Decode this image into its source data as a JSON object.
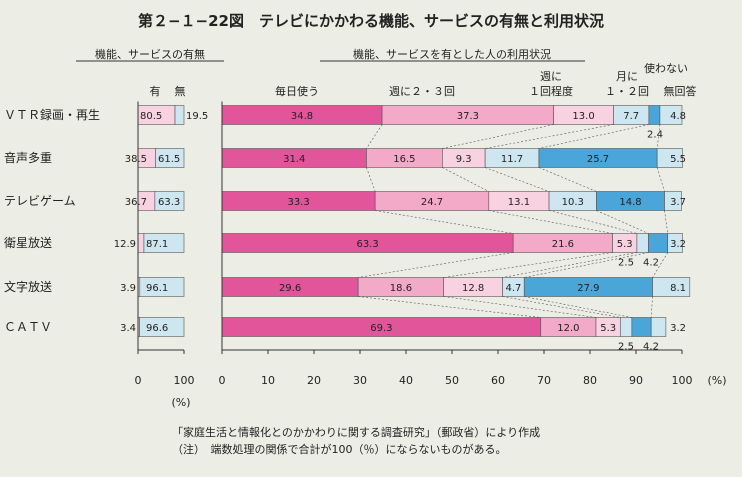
{
  "title": "第２−１−22図　テレビにかかわる機能、サービスの有無と利用状況",
  "left_header": "機能、サービスの有無",
  "right_header": "機能、サービスを有とした人の利用状況",
  "yes_label": "有",
  "no_label": "無",
  "legend_daily": "毎日使う",
  "legend_weekly": "週に２・３回",
  "legend_weekly1_a": "週に",
  "legend_weekly1_b": "１回程度",
  "legend_monthly_a": "月に",
  "legend_monthly_b": "１・２回",
  "legend_unused": "使わない",
  "legend_noanswer": "無回答",
  "left_axis_ticks": [
    "0",
    "100"
  ],
  "left_axis_unit": "(%)",
  "right_axis_ticks": [
    "0",
    "10",
    "20",
    "30",
    "40",
    "50",
    "60",
    "70",
    "80",
    "90",
    "100"
  ],
  "right_axis_unit": "(%)",
  "source": "「家庭生活と情報化とのかかわりに関する調査研究」（郵政省）により作成",
  "note": "（注）　端数処理の関係で合計が100（％）にならないものがある。",
  "colors": {
    "daily": "#e2559a",
    "weekly": "#f2aac8",
    "weekly1": "#f9d2e2",
    "monthly": "#cde6f0",
    "unused": "#4aa6d8",
    "noanswer": "#cde6f0",
    "yes": "#f9d2e2",
    "no": "#cde6f0"
  },
  "chart_data": [
    {
      "type": "bar",
      "title": "機能、サービスの有無",
      "categories": [
        "ＶＴＲ録画・再生",
        "音声多重",
        "テレビゲーム",
        "衛星放送",
        "文字放送",
        "ＣＡＴＶ"
      ],
      "series": [
        {
          "name": "有",
          "values": [
            80.5,
            38.5,
            36.7,
            12.9,
            3.9,
            3.4
          ]
        },
        {
          "name": "無",
          "values": [
            19.5,
            61.5,
            63.3,
            87.1,
            96.1,
            96.6
          ]
        }
      ],
      "stacked": true,
      "xlim": [
        0,
        100
      ]
    },
    {
      "type": "bar",
      "title": "機能、サービスを有とした人の利用状況",
      "categories": [
        "ＶＴＲ録画・再生",
        "音声多重",
        "テレビゲーム",
        "衛星放送",
        "文字放送",
        "ＣＡＴＶ"
      ],
      "series": [
        {
          "name": "毎日使う",
          "values": [
            34.8,
            31.4,
            33.3,
            63.3,
            29.6,
            69.3
          ]
        },
        {
          "name": "週に２・３回",
          "values": [
            37.3,
            16.5,
            24.7,
            21.6,
            18.6,
            12.0
          ]
        },
        {
          "name": "週に１回程度",
          "values": [
            13.0,
            9.3,
            13.1,
            5.3,
            12.8,
            5.3
          ]
        },
        {
          "name": "月に１・２回",
          "values": [
            7.7,
            11.7,
            10.3,
            2.5,
            4.7,
            2.5
          ]
        },
        {
          "name": "使わない",
          "values": [
            2.4,
            25.7,
            14.8,
            4.2,
            27.9,
            4.2
          ]
        },
        {
          "name": "無回答",
          "values": [
            4.8,
            5.5,
            3.7,
            3.2,
            8.1,
            3.2
          ]
        }
      ],
      "stacked": true,
      "xlim": [
        0,
        100
      ]
    }
  ],
  "right_value_labels": [
    [
      "34.8",
      "37.3",
      "13.0",
      "7.7",
      "",
      "4.8"
    ],
    [
      "31.4",
      "16.5",
      "9.3",
      "11.7",
      "25.7",
      "5.5"
    ],
    [
      "33.3",
      "24.7",
      "13.1",
      "10.3",
      "14.8",
      "3.7"
    ],
    [
      "63.3",
      "21.6",
      "5.3",
      "",
      "",
      "3.2"
    ],
    [
      "29.6",
      "18.6",
      "12.8",
      "4.7",
      "27.9",
      "8.1"
    ],
    [
      "69.3",
      "12.0",
      "5.3",
      "",
      "",
      "3.2"
    ]
  ],
  "below_bar_labels": [
    [
      "2.4"
    ],
    [],
    [],
    [
      "2.5",
      "4.2"
    ],
    [],
    [
      "2.5",
      "4.2"
    ]
  ]
}
